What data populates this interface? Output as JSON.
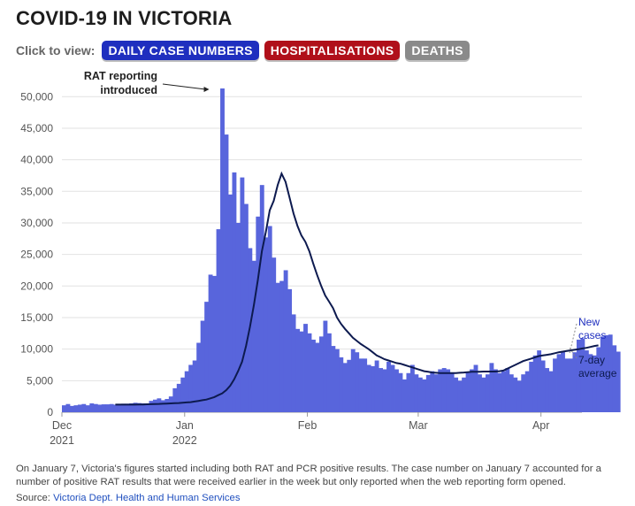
{
  "title": "COVID-19 IN VICTORIA",
  "controls": {
    "label": "Click to view:",
    "buttons": [
      {
        "label": "DAILY CASE NUMBERS",
        "color": "#1f2fbf"
      },
      {
        "label": "HOSPITALISATIONS",
        "color": "#b0101a"
      },
      {
        "label": "DEATHS",
        "color": "#8a8a8a"
      }
    ]
  },
  "colors": {
    "bars": "#5865dc",
    "average_line": "#0d1a4f",
    "annotation_text": "#1f2fbf"
  },
  "chart_data": {
    "type": "bar",
    "x_start_date": "2021-12-01",
    "x_end_date": "2022-04-08",
    "ylim": [
      0,
      52000
    ],
    "y_ticks": [
      0,
      5000,
      10000,
      15000,
      20000,
      25000,
      30000,
      35000,
      40000,
      45000,
      50000
    ],
    "y_tick_labels": [
      "0",
      "5,000",
      "10,000",
      "15,000",
      "20,000",
      "25,000",
      "30,000",
      "35,000",
      "40,000",
      "45,000",
      "50,000"
    ],
    "x_ticks": [
      {
        "date": "2021-12-01",
        "label": "Dec",
        "sublabel": "2021"
      },
      {
        "date": "2022-01-01",
        "label": "Jan",
        "sublabel": "2022"
      },
      {
        "date": "2022-02-01",
        "label": "Feb",
        "sublabel": ""
      },
      {
        "date": "2022-03-01",
        "label": "Mar",
        "sublabel": ""
      },
      {
        "date": "2022-04-01",
        "label": "Apr",
        "sublabel": ""
      }
    ],
    "grid": "horizontal",
    "series": [
      {
        "name": "New cases",
        "type": "bar",
        "values": [
          1100,
          1300,
          1000,
          1100,
          1200,
          1300,
          1100,
          1400,
          1300,
          1200,
          1250,
          1250,
          1300,
          1200,
          1300,
          1350,
          1350,
          1400,
          1500,
          1450,
          1400,
          1350,
          1800,
          2000,
          2200,
          1900,
          2100,
          2500,
          3800,
          4500,
          5500,
          6500,
          7500,
          8200,
          11000,
          14500,
          17500,
          21800,
          21600,
          29000,
          51300,
          44000,
          34500,
          38000,
          30000,
          37200,
          33000,
          26000,
          24000,
          31000,
          36000,
          27700,
          29500,
          24500,
          20500,
          20800,
          22500,
          19500,
          15500,
          13200,
          12800,
          14000,
          12500,
          11500,
          11000,
          12000,
          14500,
          12500,
          10500,
          10000,
          8700,
          7800,
          8300,
          10000,
          9500,
          8500,
          8500,
          7500,
          7300,
          8200,
          7000,
          6800,
          8000,
          7500,
          6800,
          6200,
          5200,
          6200,
          7500,
          6000,
          5500,
          5200,
          5900,
          6500,
          6000,
          6800,
          7000,
          6800,
          6200,
          5500,
          5000,
          5500,
          6300,
          6800,
          7500,
          6000,
          5500,
          6000,
          7800,
          6800,
          6200,
          6500,
          7000,
          6000,
          5500,
          5000,
          6000,
          6500,
          8000,
          9000,
          9800,
          8200,
          7000,
          6500,
          8500,
          9200,
          9600,
          8500,
          8500,
          9500,
          11500,
          11700,
          9800,
          9200,
          9000,
          10300,
          12000,
          12200,
          12300,
          10600,
          9600
        ]
      },
      {
        "name": "7-day average",
        "type": "line",
        "values": [
          1200,
          1200,
          1200,
          1200,
          1200,
          1200,
          1220,
          1240,
          1260,
          1280,
          1300,
          1320,
          1340,
          1370,
          1400,
          1430,
          1460,
          1500,
          1550,
          1600,
          1700,
          1800,
          1900,
          2000,
          2200,
          2400,
          2700,
          3000,
          3500,
          4200,
          5200,
          6500,
          8000,
          10500,
          13500,
          17000,
          21000,
          25500,
          28500,
          32000,
          33500,
          36000,
          37800,
          36500,
          34000,
          31500,
          29500,
          28000,
          27000,
          25500,
          23500,
          21700,
          20000,
          18500,
          17500,
          16500,
          15000,
          14000,
          13200,
          12500,
          11800,
          11300,
          10800,
          10400,
          10000,
          9500,
          9000,
          8700,
          8400,
          8200,
          8000,
          7800,
          7700,
          7500,
          7300,
          7100,
          6900,
          6700,
          6500,
          6400,
          6300,
          6250,
          6200,
          6200,
          6200,
          6200,
          6200,
          6250,
          6300,
          6350,
          6400,
          6400,
          6400,
          6450,
          6450,
          6450,
          6450,
          6500,
          6600,
          6900,
          7200,
          7500,
          7800,
          8100,
          8300,
          8500,
          8700,
          8900,
          9000,
          9100,
          9200,
          9350,
          9500,
          9600,
          9700,
          9800,
          9900,
          10000,
          10100,
          10200,
          10350,
          10500,
          10600
        ],
        "x_offset_days": 13
      }
    ],
    "annotations": [
      {
        "text_lines": [
          "RAT reporting",
          "introduced"
        ],
        "date": "2022-01-07",
        "value": 51300
      },
      {
        "text_lines": [
          "New",
          "cases"
        ],
        "series": "New cases"
      },
      {
        "text_lines": [
          "7-day",
          "average"
        ],
        "series": "7-day average"
      }
    ]
  },
  "footnote": "On January 7, Victoria's figures started including both RAT and PCR positive results. The case number on January 7 accounted for a number of positive RAT results that were received earlier in the week but only reported when the web reporting form opened.",
  "source": {
    "label": "Source:",
    "link_text": "Victoria Dept. Health and Human Services"
  }
}
